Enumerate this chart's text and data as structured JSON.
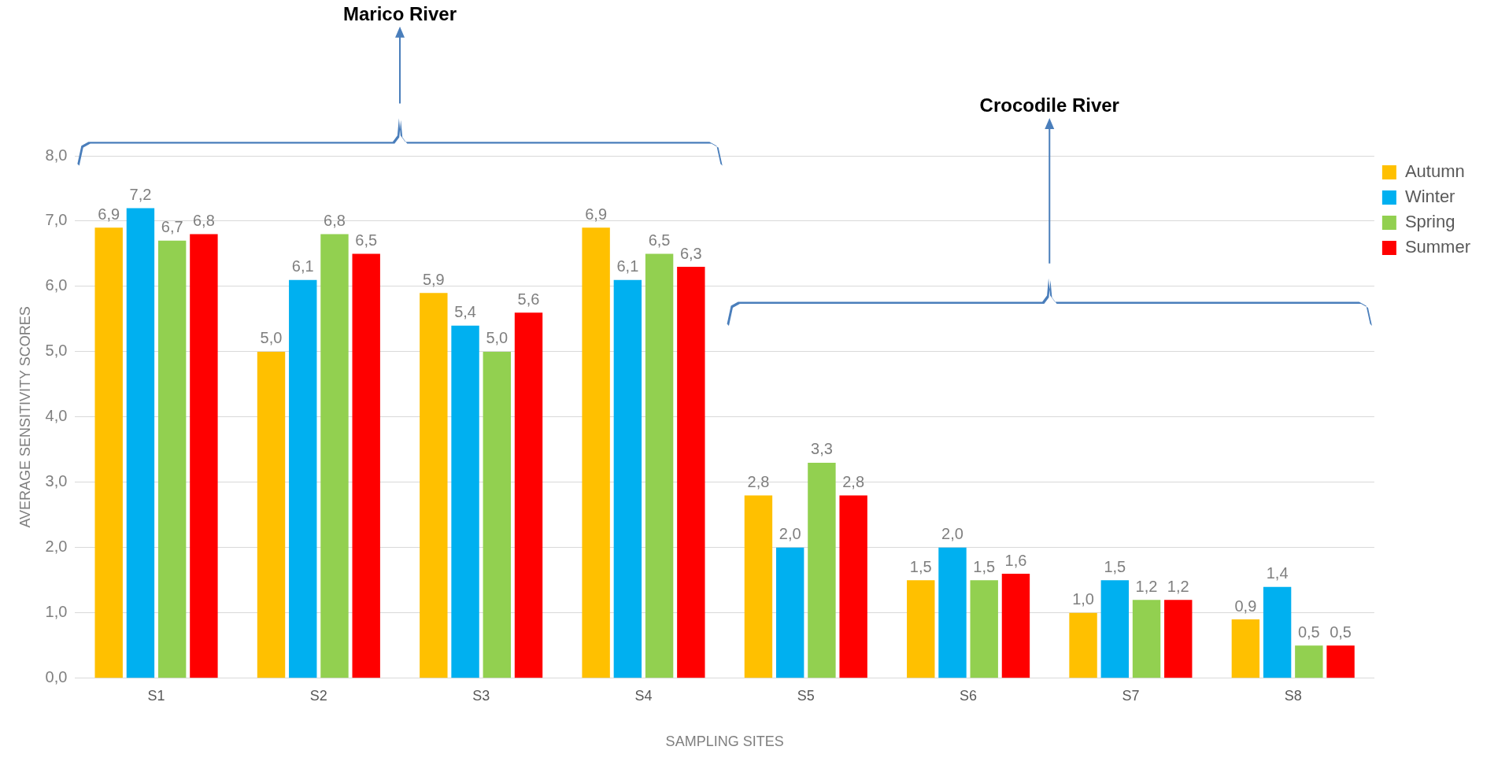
{
  "chart_data": {
    "type": "bar",
    "xlabel": "SAMPLING SITES",
    "ylabel": "AVERAGE SENSITIVITY SCORES",
    "categories": [
      "S1",
      "S2",
      "S3",
      "S4",
      "S5",
      "S6",
      "S7",
      "S8"
    ],
    "series": [
      {
        "name": "Autumn",
        "color": "#ffc000",
        "values": [
          6.9,
          5.0,
          5.9,
          6.9,
          2.8,
          1.5,
          1.0,
          0.9
        ],
        "value_labels": [
          "6,9",
          "5,0",
          "5,9",
          "6,9",
          "2,8",
          "1,5",
          "1,0",
          "0,9"
        ]
      },
      {
        "name": "Winter",
        "color": "#00b0f0",
        "values": [
          7.2,
          6.1,
          5.4,
          6.1,
          2.0,
          2.0,
          1.5,
          1.4
        ],
        "value_labels": [
          "7,2",
          "6,1",
          "5,4",
          "6,1",
          "2,0",
          "2,0",
          "1,5",
          "1,4"
        ]
      },
      {
        "name": "Spring",
        "color": "#92d050",
        "values": [
          6.7,
          6.8,
          5.0,
          6.5,
          3.3,
          1.5,
          1.2,
          0.5
        ],
        "value_labels": [
          "6,7",
          "6,8",
          "5,0",
          "6,5",
          "3,3",
          "1,5",
          "1,2",
          "0,5"
        ]
      },
      {
        "name": "Summer",
        "color": "#ff0000",
        "values": [
          6.8,
          6.5,
          5.6,
          6.3,
          2.8,
          1.6,
          1.2,
          0.5
        ],
        "value_labels": [
          "6,8",
          "6,5",
          "5,6",
          "6,3",
          "2,8",
          "1,6",
          "1,2",
          "0,5"
        ]
      }
    ],
    "ylim": [
      0,
      8
    ],
    "yticks": [
      {
        "value": 0,
        "label": "0,0"
      },
      {
        "value": 1,
        "label": "1,0"
      },
      {
        "value": 2,
        "label": "2,0"
      },
      {
        "value": 3,
        "label": "3,0"
      },
      {
        "value": 4,
        "label": "4,0"
      },
      {
        "value": 5,
        "label": "5,0"
      },
      {
        "value": 6,
        "label": "6,0"
      },
      {
        "value": 7,
        "label": "7,0"
      },
      {
        "value": 8,
        "label": "8,0"
      }
    ],
    "grid": "y",
    "legend": "top right",
    "annotations": [
      "Marico River",
      "Crocodile River"
    ]
  }
}
